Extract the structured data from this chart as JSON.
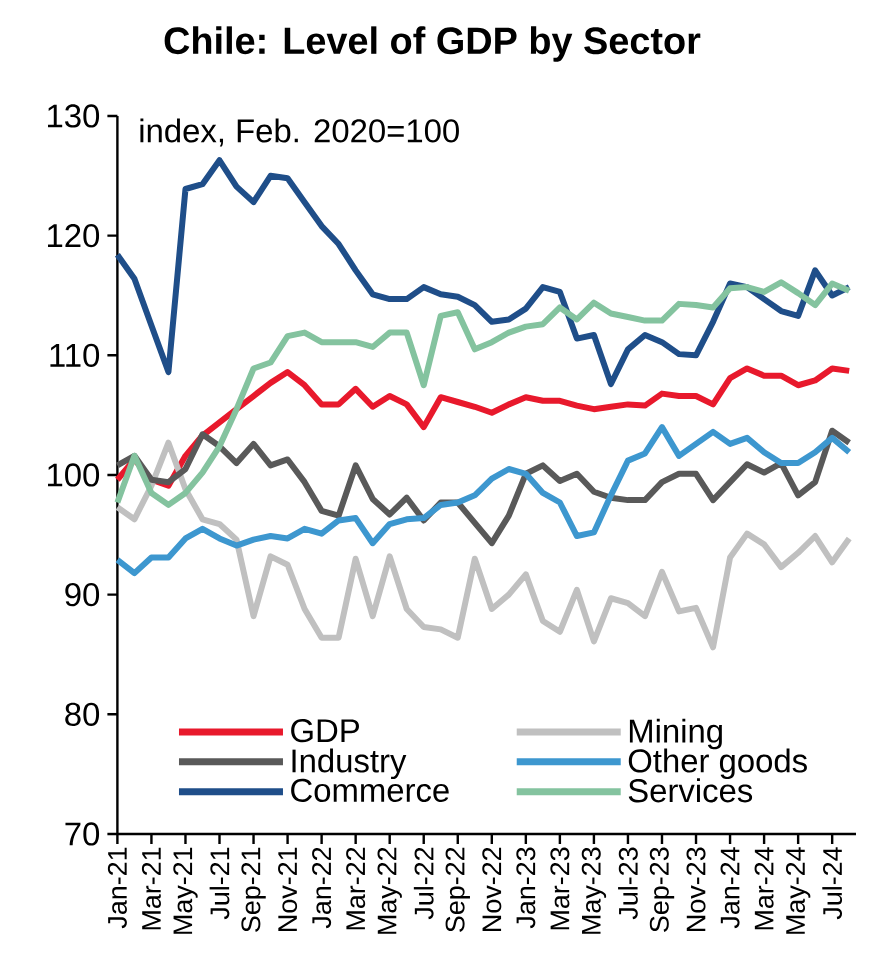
{
  "chart_data": {
    "type": "line",
    "title": "Chile: Level of GDP by Sector",
    "annotations": [
      "index, Feb. 2020=100"
    ],
    "categories": [
      "Jan-21",
      null,
      "Mar-21",
      null,
      "May-21",
      null,
      "Jul-21",
      null,
      "Sep-21",
      null,
      "Nov-21",
      null,
      "Jan-22",
      null,
      "Mar-22",
      null,
      "May-22",
      null,
      "Jul-22",
      null,
      "Sep-22",
      null,
      "Nov-22",
      null,
      "Jan-23",
      null,
      "Mar-23",
      null,
      "May-23",
      null,
      "Jul-23",
      null,
      "Sep-23",
      null,
      "Nov-23",
      null,
      "Jan-24",
      null,
      "Mar-24",
      null,
      "May-24",
      null,
      "Jul-24",
      null
    ],
    "series": [
      {
        "name": "GDP",
        "color": "#e8192c",
        "values": [
          99.6,
          101.3,
          99.6,
          99.1,
          101.6,
          103.3,
          104.4,
          105.5,
          106.6,
          107.7,
          108.6,
          107.5,
          105.9,
          105.9,
          107.2,
          105.7,
          106.6,
          105.9,
          104.0,
          106.5,
          106.1,
          105.7,
          105.2,
          105.9,
          106.5,
          106.2,
          106.2,
          105.8,
          105.5,
          105.7,
          105.9,
          105.8,
          106.8,
          106.6,
          106.6,
          105.9,
          108.1,
          108.9,
          108.3,
          108.3,
          107.5,
          107.9,
          108.9,
          108.7
        ]
      },
      {
        "name": "Mining",
        "color": "#c0c0c0",
        "values": [
          97.3,
          96.3,
          99.1,
          102.7,
          98.8,
          96.3,
          95.9,
          94.6,
          88.2,
          93.2,
          92.5,
          88.8,
          86.4,
          86.4,
          93.0,
          88.2,
          93.2,
          88.8,
          87.3,
          87.1,
          86.4,
          93.0,
          88.8,
          90.0,
          91.7,
          87.8,
          86.9,
          90.4,
          86.1,
          89.7,
          89.3,
          88.2,
          91.9,
          88.6,
          88.9,
          85.6,
          93.1,
          95.1,
          94.2,
          92.3,
          93.5,
          94.9,
          92.7,
          94.7
        ]
      },
      {
        "name": "Industry",
        "color": "#595959",
        "values": [
          100.8,
          101.6,
          99.6,
          99.4,
          100.5,
          103.4,
          102.4,
          101.0,
          102.6,
          100.8,
          101.3,
          99.4,
          97.0,
          96.6,
          100.8,
          98.0,
          96.7,
          98.1,
          96.2,
          97.7,
          97.7,
          96.0,
          94.3,
          96.6,
          100.1,
          100.8,
          99.5,
          100.1,
          98.6,
          98.1,
          97.9,
          97.9,
          99.4,
          100.1,
          100.1,
          97.9,
          99.4,
          100.9,
          100.2,
          101.0,
          98.3,
          99.4,
          103.7,
          102.7
        ]
      },
      {
        "name": "Other goods",
        "color": "#3d97cf",
        "values": [
          92.9,
          91.8,
          93.1,
          93.1,
          94.7,
          95.5,
          94.7,
          94.1,
          94.6,
          94.9,
          94.7,
          95.5,
          95.1,
          96.2,
          96.4,
          94.3,
          95.9,
          96.3,
          96.4,
          97.5,
          97.7,
          98.3,
          99.7,
          100.5,
          100.1,
          98.5,
          97.7,
          94.9,
          95.2,
          98.3,
          101.2,
          101.8,
          104.0,
          101.6,
          102.6,
          103.6,
          102.6,
          103.1,
          101.9,
          101.0,
          101.0,
          101.9,
          103.1,
          101.9
        ]
      },
      {
        "name": "Commerce",
        "color": "#1f4e89",
        "values": [
          118.4,
          116.4,
          112.5,
          108.6,
          123.9,
          124.3,
          126.3,
          124.1,
          122.8,
          125.0,
          124.8,
          122.8,
          120.8,
          119.3,
          117.1,
          115.1,
          114.7,
          114.7,
          115.7,
          115.1,
          114.9,
          114.2,
          112.8,
          113.0,
          113.9,
          115.7,
          115.3,
          111.4,
          111.7,
          107.6,
          110.5,
          111.7,
          111.1,
          110.1,
          110.0,
          112.8,
          116.0,
          115.7,
          114.7,
          113.7,
          113.3,
          117.1,
          115.0,
          115.7
        ]
      },
      {
        "name": "Services",
        "color": "#84c39f",
        "values": [
          97.7,
          101.6,
          98.5,
          97.5,
          98.5,
          100.2,
          102.4,
          105.5,
          108.9,
          109.4,
          111.6,
          111.9,
          111.1,
          111.1,
          111.1,
          110.7,
          111.9,
          111.9,
          107.5,
          113.3,
          113.6,
          110.5,
          111.1,
          111.9,
          112.4,
          112.6,
          114.0,
          113.0,
          114.4,
          113.5,
          113.2,
          112.9,
          112.9,
          114.3,
          114.2,
          114.0,
          115.6,
          115.7,
          115.3,
          116.1,
          115.2,
          114.2,
          116.0,
          115.4
        ]
      }
    ],
    "ylim": [
      70,
      130
    ],
    "yticks": [
      70,
      80,
      90,
      100,
      110,
      120,
      130
    ],
    "legend": "bottom",
    "marker": "none",
    "line_style": "solid"
  }
}
